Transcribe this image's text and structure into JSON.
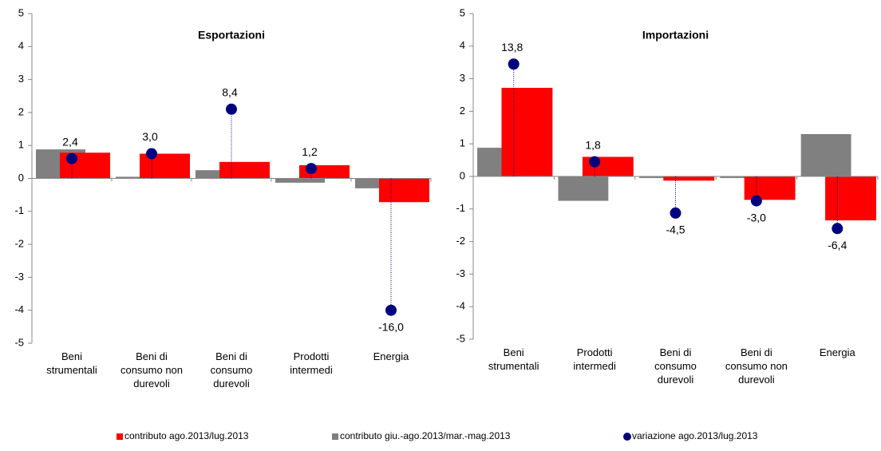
{
  "chart_data": [
    {
      "type": "bar_dot",
      "title": "Esportazioni",
      "categories": [
        "Beni strumentali",
        "Beni di consumo non durevoli",
        "Beni di consumo durevoli",
        "Prodotti intermedi",
        "Energia"
      ],
      "series": [
        {
          "name": "contributo ago.2013/lug.2013",
          "color": "#ff0000",
          "values": [
            0.78,
            0.75,
            0.5,
            0.4,
            -0.72
          ]
        },
        {
          "name": "contributo giu.-ago.2013/mar.-mag.2013",
          "color": "#808080",
          "values": [
            0.88,
            0.05,
            0.25,
            -0.13,
            -0.3
          ]
        },
        {
          "name": "variazione ago.2013/lug.2013",
          "color": "#000080",
          "axis": "y2",
          "values": [
            2.4,
            3.0,
            8.4,
            1.2,
            -16.0
          ],
          "value_labels": [
            "2,4",
            "3,0",
            "8,4",
            "1,2",
            "-16,0"
          ]
        }
      ],
      "ylim": [
        -5,
        5
      ],
      "yticks": [
        -5,
        -4,
        -3,
        -2,
        -1,
        0,
        1,
        2,
        3,
        4,
        5
      ],
      "y2lim": [
        -20,
        20
      ]
    },
    {
      "type": "bar_dot",
      "title": "Importazioni",
      "categories": [
        "Beni strumentali",
        "Prodotti intermedi",
        "Beni di consumo durevoli",
        "Beni di consumo non durevoli",
        "Energia"
      ],
      "series": [
        {
          "name": "contributo ago.2013/lug.2013",
          "color": "#ff0000",
          "values": [
            2.72,
            0.6,
            -0.13,
            -0.72,
            -1.35
          ]
        },
        {
          "name": "contributo giu.-ago.2013/mar.-mag.2013",
          "color": "#808080",
          "values": [
            0.88,
            -0.75,
            -0.05,
            -0.05,
            1.3
          ]
        },
        {
          "name": "variazione ago.2013/lug.2013",
          "color": "#000080",
          "axis": "y2",
          "values": [
            13.8,
            1.8,
            -4.5,
            -3.0,
            -6.4
          ],
          "value_labels": [
            "13,8",
            "1,8",
            "-4,5",
            "-3,0",
            "-6,4"
          ]
        }
      ],
      "ylim": [
        -5,
        5
      ],
      "yticks": [
        -5,
        -4,
        -3,
        -2,
        -1,
        0,
        1,
        2,
        3,
        4,
        5
      ],
      "y2lim": [
        -20,
        20
      ]
    }
  ]
}
